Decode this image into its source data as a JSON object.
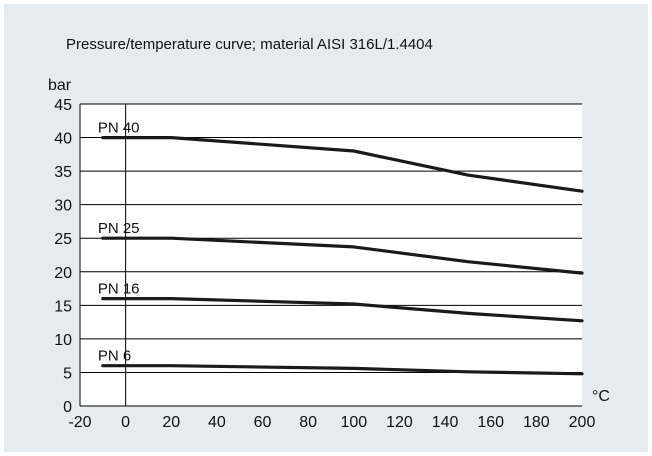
{
  "chart_data": {
    "type": "line",
    "title": "Pressure/temperature curve; material AISI 316L/1.4404",
    "ylabel": "bar",
    "xunit": "°C",
    "xlim": [
      -20,
      200
    ],
    "ylim": [
      0,
      45
    ],
    "xticks": [
      -20,
      0,
      20,
      40,
      60,
      80,
      100,
      120,
      140,
      160,
      180,
      200
    ],
    "yticks": [
      0,
      5,
      10,
      15,
      20,
      25,
      30,
      35,
      40,
      45
    ],
    "grid": "horizontal",
    "series": [
      {
        "name": "PN 40",
        "x": [
          -10,
          20,
          100,
          150,
          200
        ],
        "y": [
          40,
          40,
          38,
          34.4,
          32
        ]
      },
      {
        "name": "PN 25",
        "x": [
          -10,
          20,
          100,
          150,
          200
        ],
        "y": [
          25,
          25,
          23.7,
          21.5,
          19.8
        ]
      },
      {
        "name": "PN 16",
        "x": [
          -10,
          20,
          100,
          150,
          200
        ],
        "y": [
          16,
          16,
          15.2,
          13.8,
          12.7
        ]
      },
      {
        "name": "PN 6",
        "x": [
          -10,
          20,
          100,
          150,
          200
        ],
        "y": [
          6,
          6,
          5.6,
          5.1,
          4.8
        ]
      }
    ],
    "colors": {
      "background": "#e6ebf0",
      "plot": "#ffffff",
      "line": "#1a1a1a"
    }
  }
}
